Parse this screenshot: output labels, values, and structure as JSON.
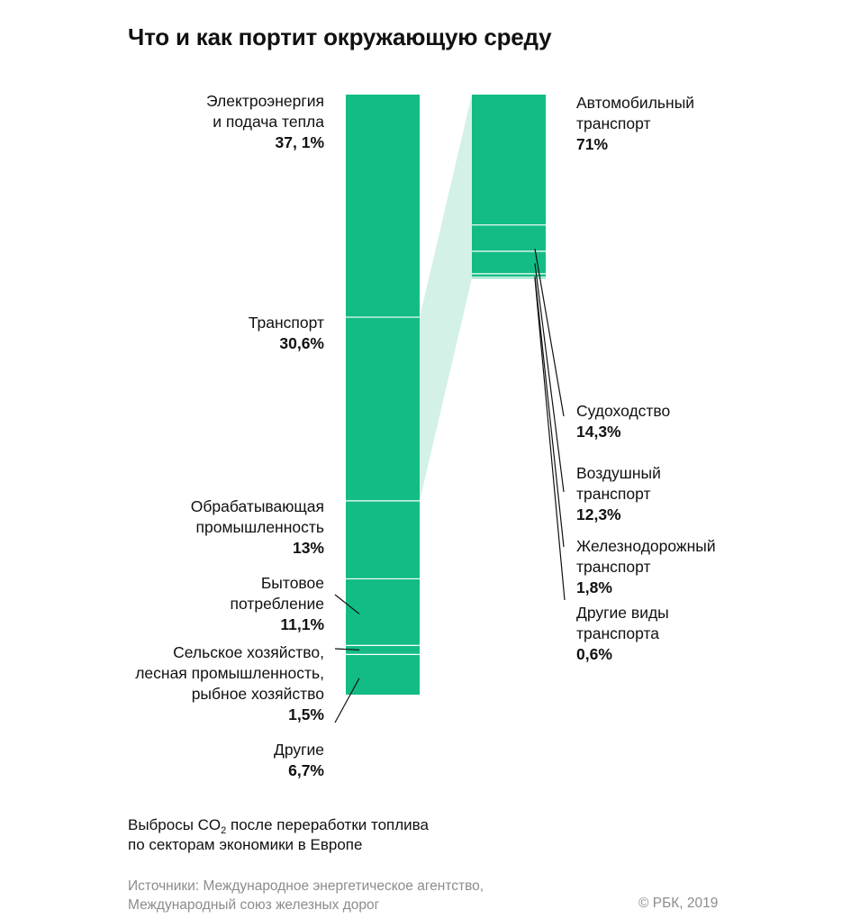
{
  "title": "Что и как портит окружающую среду",
  "chart_data": [
    {
      "type": "bar",
      "subtype": "stacked-100",
      "segments": [
        {
          "label": [
            "Электроэнергия",
            "и подача тепла"
          ],
          "value_label": "37, 1%",
          "value": 37.1
        },
        {
          "label": [
            "Транспорт"
          ],
          "value_label": "30,6%",
          "value": 30.6
        },
        {
          "label": [
            "Обрабатывающая",
            "промышленность"
          ],
          "value_label": "13%",
          "value": 13
        },
        {
          "label": [
            "Бытовое",
            "потребление"
          ],
          "value_label": "11,1%",
          "value": 11.1
        },
        {
          "label": [
            "Сельское хозяйство,",
            "лесная промышленность,",
            "рыбное хозяйство"
          ],
          "value_label": "1,5%",
          "value": 1.5
        },
        {
          "label": [
            "Другие"
          ],
          "value_label": "6,7%",
          "value": 6.7
        }
      ]
    },
    {
      "type": "bar",
      "subtype": "stacked-100",
      "breakdown_of": "Транспорт",
      "segments": [
        {
          "label": [
            "Автомобильный",
            "транспорт"
          ],
          "value_label": "71%",
          "value": 71
        },
        {
          "label": [
            "Судоходство"
          ],
          "value_label": "14,3%",
          "value": 14.3
        },
        {
          "label": [
            "Воздушный",
            "транспорт"
          ],
          "value_label": "12,3%",
          "value": 12.3
        },
        {
          "label": [
            "Железнодорожный",
            "транспорт"
          ],
          "value_label": "1,8%",
          "value": 1.8
        },
        {
          "label": [
            "Другие виды",
            "транспорта"
          ],
          "value_label": "0,6%",
          "value": 0.6
        }
      ]
    }
  ],
  "colors": {
    "bar": "#13bc85",
    "connector": "#d3f1e6",
    "divider": "#ffffff",
    "leader": "#111111",
    "sources": "#8c8c8c"
  },
  "footnote": {
    "line1_before": "Выбросы CO",
    "line1_sub": "2",
    "line1_after": " после переработки топлива",
    "line2": "по секторам экономики в Европе"
  },
  "sources": {
    "line1": "Источники: Международное энергетическое агентство,",
    "line2": "Международный союз железных дорог"
  },
  "copyright": "© РБК, 2019"
}
